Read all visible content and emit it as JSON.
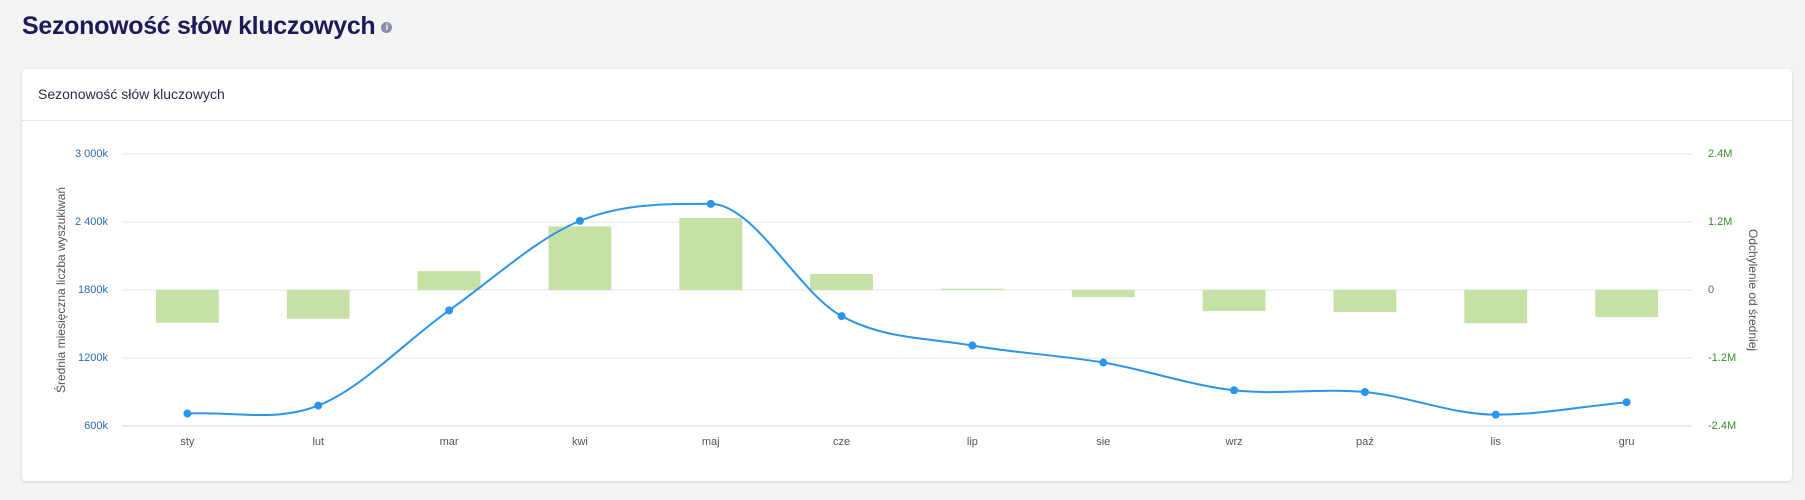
{
  "header": {
    "title": "Sezonowość słów kluczowych"
  },
  "card": {
    "title": "Sezonowość słów kluczowych"
  },
  "chart_data": {
    "type": "combo",
    "categories": [
      "sty",
      "lut",
      "mar",
      "kwi",
      "maj",
      "cze",
      "lip",
      "sie",
      "wrz",
      "paź",
      "lis",
      "gru"
    ],
    "y_label": "Średnia miesięczna liczba wyszukiwań",
    "y2_label": "Odchylenie od średniej",
    "ylim": [
      600000,
      3000000
    ],
    "yticks": [
      {
        "value": 600000,
        "label": "600k"
      },
      {
        "value": 1200000,
        "label": "1200k"
      },
      {
        "value": 1800000,
        "label": "1800k"
      },
      {
        "value": 2400000,
        "label": "2 400k"
      },
      {
        "value": 3000000,
        "label": "3 000k"
      }
    ],
    "y2lim": [
      -2400000,
      2400000
    ],
    "y2ticks": [
      {
        "value": -2400000,
        "label": "-2.4M"
      },
      {
        "value": -1200000,
        "label": "-1.2M"
      },
      0,
      {
        "value": 1200000,
        "label": "1.2M"
      },
      {
        "value": 2400000,
        "label": "2.4M"
      }
    ],
    "grid": true,
    "series": [
      {
        "type": "bar",
        "axis": "y2",
        "color": "#c5e1a5",
        "values": [
          -577000,
          -507000,
          333000,
          1123000,
          1273000,
          283000,
          23000,
          -127000,
          -372000,
          -387000,
          -587000,
          -477000
        ]
      },
      {
        "type": "line",
        "axis": "y",
        "color": "#2b95e9",
        "values": [
          710000,
          780000,
          1620000,
          2410000,
          2560000,
          1570000,
          1310000,
          1160000,
          915000,
          900000,
          700000,
          810000
        ]
      }
    ]
  }
}
